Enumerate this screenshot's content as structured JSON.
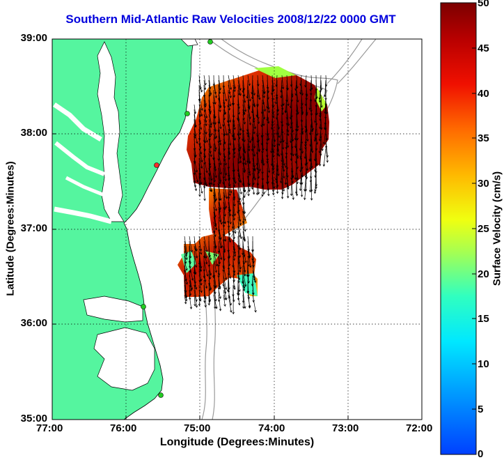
{
  "title": "Southern Mid-Atlantic Raw Velocities 2008/12/22 0000 GMT",
  "xlabel": "Longitude (Degrees:Minutes)",
  "ylabel": "Latitude (Degrees:Minutes)",
  "x_ticks": [
    "77:00",
    "76:00",
    "75:00",
    "74:00",
    "73:00",
    "72:00"
  ],
  "y_ticks": [
    "39:00",
    "38:00",
    "37:00",
    "36:00",
    "35:00"
  ],
  "colorbar": {
    "label": "Surface Velocity (cm/s)",
    "ticks": [
      "0",
      "5",
      "10",
      "15",
      "20",
      "25",
      "30",
      "35",
      "40",
      "45",
      "50"
    ],
    "range": [
      0,
      50
    ],
    "colormap": "jet"
  },
  "colors": {
    "land": "#55f59f",
    "coast": "#000000",
    "bathymetry": "#9a9a9a",
    "title": "#0000dd",
    "sites": "#22cc22",
    "site_alert": "#ff2a2a"
  },
  "map_extent": {
    "lon_min": -77.0,
    "lon_max": -72.0,
    "lat_min": 35.0,
    "lat_max": 39.0
  },
  "grid": "dotted"
}
